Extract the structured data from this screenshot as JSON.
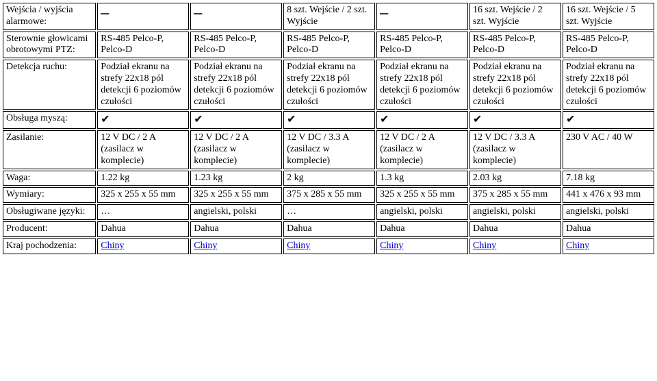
{
  "rows": {
    "alarm": {
      "label": "Wejścia / wyjścia alarmowe:",
      "cells": [
        "–",
        "–",
        "8 szt. Wejście / 2 szt. Wyjście",
        "–",
        "16 szt. Wejście / 2 szt. Wyjście",
        "16 szt. Wejście / 5 szt. Wyjście"
      ]
    },
    "ptz": {
      "label": "Sterownie głowicami obrotowymi PTZ:",
      "cells": [
        "RS-485 Pelco-P, Pelco-D",
        "RS-485 Pelco-P, Pelco-D",
        "RS-485 Pelco-P, Pelco-D",
        "RS-485 Pelco-P, Pelco-D",
        "RS-485 Pelco-P, Pelco-D",
        "RS-485 Pelco-P, Pelco-D"
      ]
    },
    "motion": {
      "label": "Detekcja ruchu:",
      "cell": "Podział ekranu na strefy 22x18  pól detekcji\n6 poziomów czułości"
    },
    "mouse": {
      "label": "Obsługa myszą:",
      "check": "✔"
    },
    "power": {
      "label": "Zasilanie:",
      "cells": [
        "12 V DC / 2 A (zasilacz w komplecie)",
        "12 V DC / 2 A (zasilacz w komplecie)",
        "12 V DC / 3.3 A (zasilacz w komplecie)",
        "12 V DC / 2 A (zasilacz w komplecie)",
        "12 V DC / 3.3 A (zasilacz w komplecie)",
        "230 V AC / 40 W"
      ]
    },
    "weight": {
      "label": "Waga:",
      "cells": [
        "1.22 kg",
        "1.23 kg",
        "2 kg",
        "1.3 kg",
        "2.03 kg",
        "7.18 kg"
      ]
    },
    "dims": {
      "label": "Wymiary:",
      "cells": [
        "325  x  255  x 55 mm",
        "325  x  255  x 55 mm",
        "375  x  285  x 55 mm",
        "325  x  255  x 55 mm",
        "375  x  285  x 55 mm",
        "441  x  476  x 93 mm"
      ]
    },
    "lang": {
      "label": "Obsługiwane języki:",
      "cells": [
        "…",
        "angielski, polski",
        "…",
        "angielski, polski",
        "angielski, polski",
        "angielski, polski"
      ]
    },
    "producer": {
      "label": "Producent:",
      "cell": "Dahua"
    },
    "country": {
      "label": "Kraj pochodzenia:",
      "cell": "Chiny"
    }
  }
}
